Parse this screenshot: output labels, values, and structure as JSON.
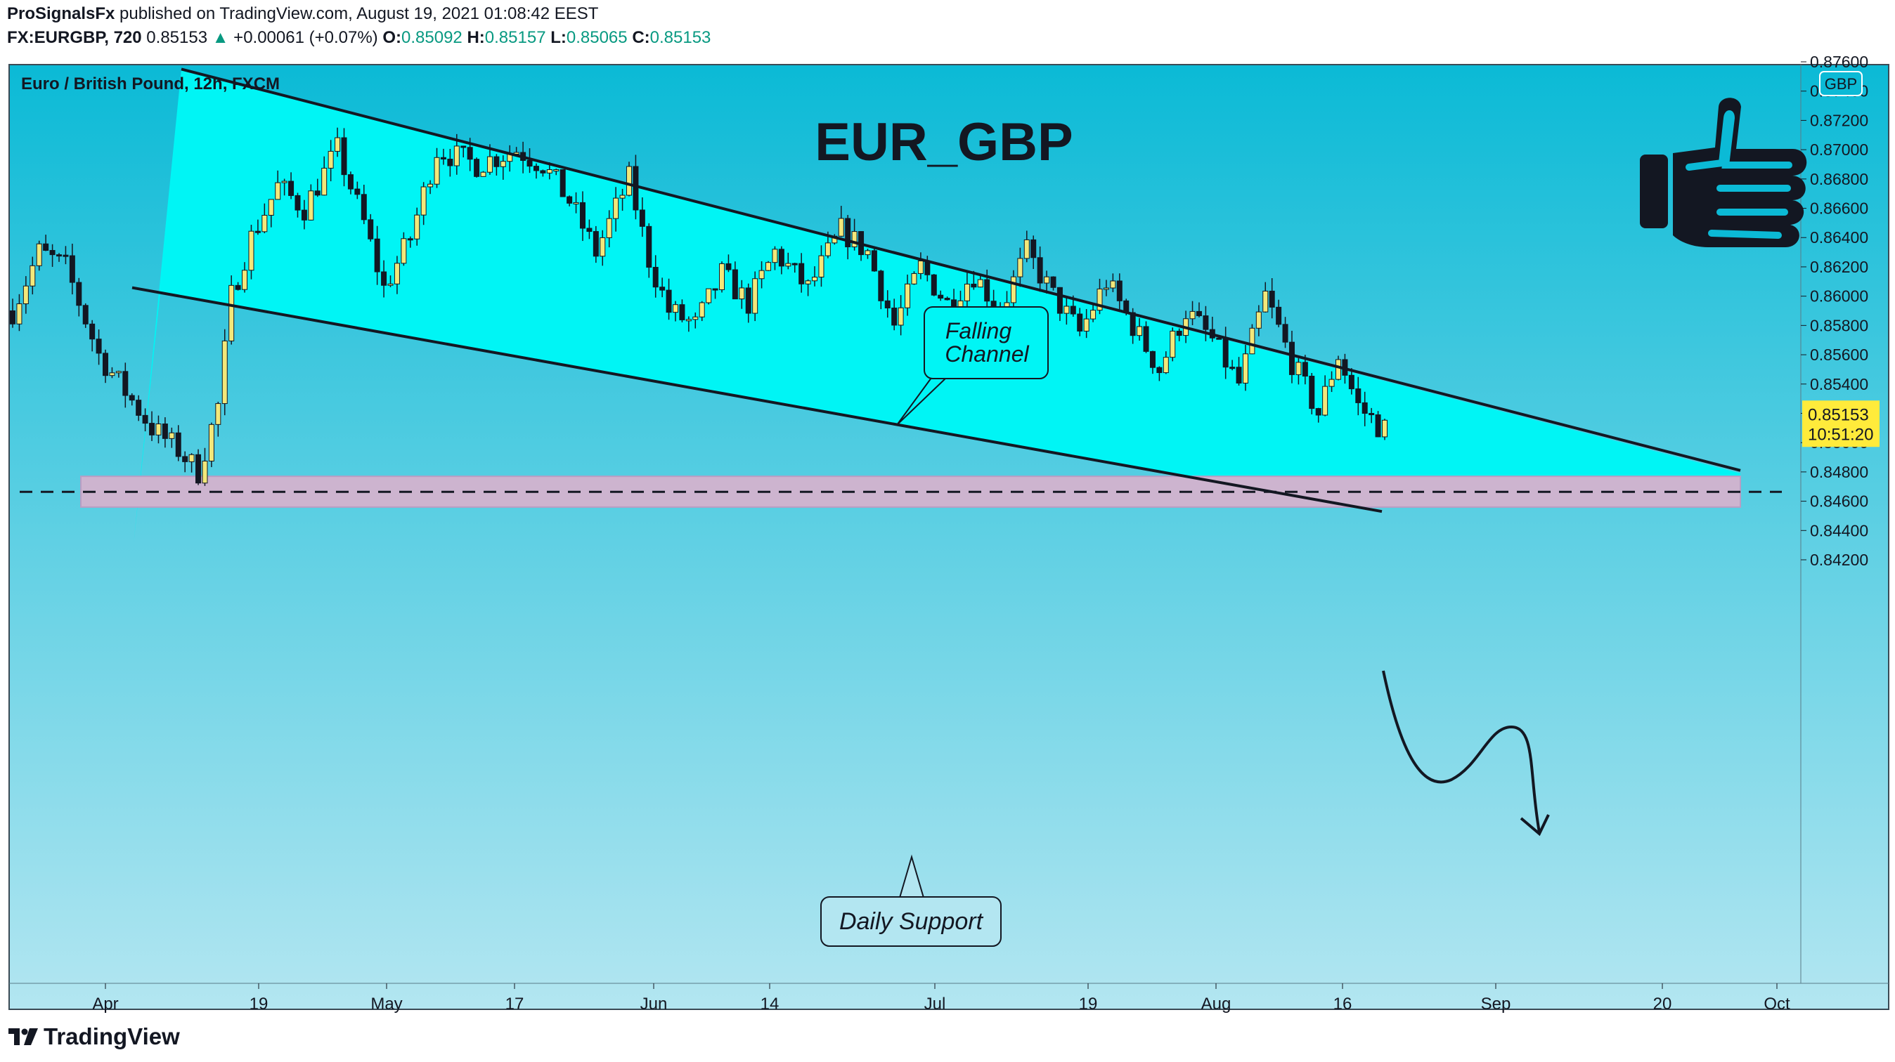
{
  "header": {
    "publisher": "ProSignalsFx",
    "published_text": "published on TradingView.com, August 19, 2021 01:08:42 EEST",
    "symbol": "FX:EURGBP, 720",
    "last": "0.85153",
    "change_arrow": "▲",
    "change": "+0.00061 (+0.07%)",
    "o_label": "O:",
    "o_value": "0.85092",
    "h_label": "H:",
    "h_value": "0.85157",
    "l_label": "L:",
    "l_value": "0.85065",
    "c_label": "C:",
    "c_value": "0.85153"
  },
  "footer": {
    "brand": "TradingView"
  },
  "colors": {
    "bg_top": "#0bbad6",
    "bg_bottom": "#b3e6f1",
    "channel_fill": "#00f5f5",
    "support_zone": "#cdb4cf",
    "candle_up": "#f3e87a",
    "candle_down": "#131722",
    "price_label_bg": "#ffeb3b"
  },
  "chart_data": {
    "type": "candlestick",
    "title": "EUR_GBP",
    "instrument_label": "Euro / British Pound, 12h, FXCM",
    "currency_badge": "GBP",
    "y_ticks": [
      "0.87600",
      "0.87400",
      "0.87200",
      "0.87000",
      "0.86800",
      "0.86600",
      "0.86400",
      "0.86200",
      "0.86000",
      "0.85800",
      "0.85600",
      "0.85400",
      "0.85200",
      "0.85000",
      "0.84800",
      "0.84600",
      "0.84400",
      "0.84200"
    ],
    "ylim": [
      0.8414,
      0.877
    ],
    "x_ticks": [
      "Apr",
      "19",
      "May",
      "17",
      "Jun",
      "14",
      "Jul",
      "19",
      "Aug",
      "16",
      "Sep",
      "20",
      "Oct"
    ],
    "current_price": "0.85153",
    "countdown": "10:51:20",
    "candle_count": 208,
    "anchors": [
      [
        0,
        0.859
      ],
      [
        4,
        0.863
      ],
      [
        8,
        0.862
      ],
      [
        13,
        0.856
      ],
      [
        17,
        0.8535
      ],
      [
        21,
        0.851
      ],
      [
        25,
        0.8495
      ],
      [
        28,
        0.848
      ],
      [
        31,
        0.8525
      ],
      [
        33,
        0.86
      ],
      [
        36,
        0.864
      ],
      [
        40,
        0.8675
      ],
      [
        44,
        0.866
      ],
      [
        49,
        0.87
      ],
      [
        53,
        0.865
      ],
      [
        56,
        0.8605
      ],
      [
        60,
        0.864
      ],
      [
        64,
        0.87
      ],
      [
        70,
        0.869
      ],
      [
        76,
        0.87
      ],
      [
        80,
        0.869
      ],
      [
        84,
        0.8665
      ],
      [
        88,
        0.863
      ],
      [
        93,
        0.868
      ],
      [
        96,
        0.8625
      ],
      [
        99,
        0.859
      ],
      [
        103,
        0.858
      ],
      [
        107,
        0.8615
      ],
      [
        111,
        0.8595
      ],
      [
        115,
        0.863
      ],
      [
        120,
        0.8605
      ],
      [
        125,
        0.8645
      ],
      [
        129,
        0.863
      ],
      [
        133,
        0.858
      ],
      [
        137,
        0.862
      ],
      [
        141,
        0.8595
      ],
      [
        145,
        0.8615
      ],
      [
        149,
        0.859
      ],
      [
        153,
        0.863
      ],
      [
        157,
        0.86
      ],
      [
        161,
        0.8575
      ],
      [
        165,
        0.861
      ],
      [
        169,
        0.858
      ],
      [
        173,
        0.855
      ],
      [
        177,
        0.859
      ],
      [
        181,
        0.857
      ],
      [
        185,
        0.854
      ],
      [
        189,
        0.86
      ],
      [
        193,
        0.8555
      ],
      [
        197,
        0.852
      ],
      [
        200,
        0.856
      ],
      [
        203,
        0.8525
      ],
      [
        206,
        0.8512
      ]
    ],
    "overlays": {
      "channel": {
        "upper": [
          [
            0.8755,
            "Apr 6"
          ],
          [
            0.8481,
            "Sep 28"
          ]
        ],
        "lower": [
          [
            0.8601,
            "Apr 6"
          ],
          [
            0.8453,
            "Aug 21"
          ]
        ],
        "label": [
          "Falling",
          "Channel"
        ]
      },
      "support": {
        "level": 0.84664,
        "zone": [
          0.8456,
          0.8477
        ],
        "label": "Daily Support"
      },
      "projection": "down to support"
    }
  }
}
